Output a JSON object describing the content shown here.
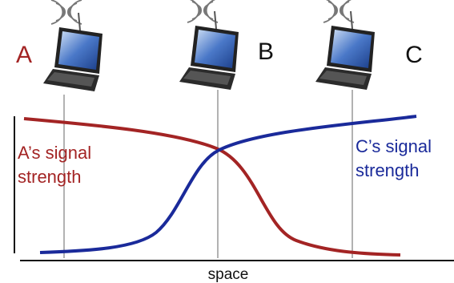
{
  "nodes": [
    {
      "label": "A"
    },
    {
      "label": "B"
    },
    {
      "label": "C"
    }
  ],
  "annotations": [
    {
      "lines": [
        "A’s signal",
        "strength"
      ]
    },
    {
      "lines": [
        "C’s signal",
        "strength"
      ]
    }
  ],
  "axis_label": "space"
}
